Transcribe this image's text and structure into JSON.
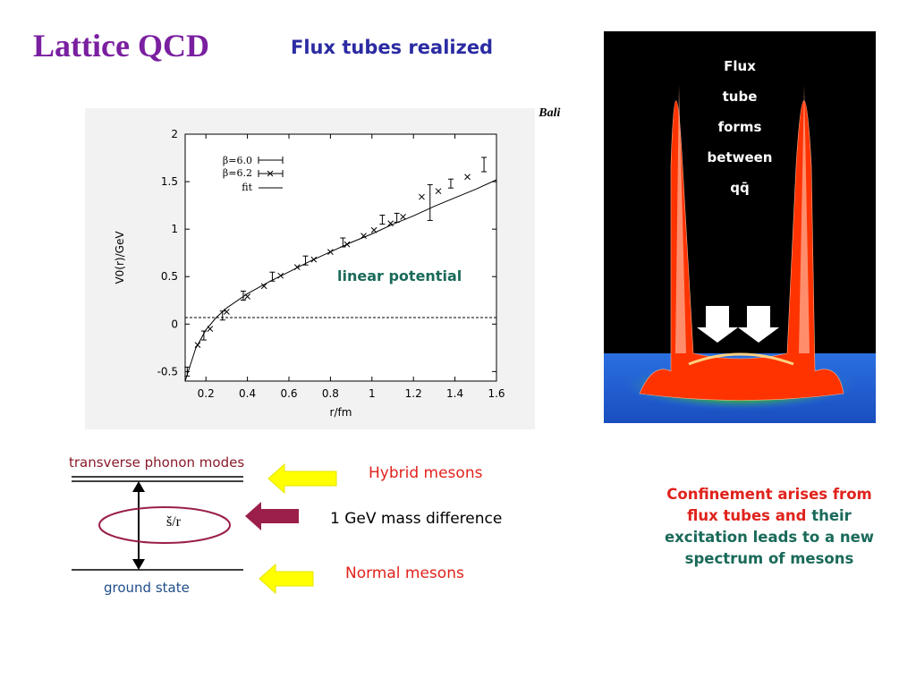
{
  "slide": {
    "title": "Lattice QCD",
    "subtitle": "Flux tubes realized",
    "credit": "From G. Bali"
  },
  "colors": {
    "title": "#7a1fa0",
    "subtitle": "#2b2ba3",
    "highlight_red": "#e0221c",
    "highlight_teal": "#1a6a5a",
    "arrow_yellow": "#ffff00",
    "arrow_maroon": "#9a1f4a"
  },
  "chart_data": {
    "type": "scatter",
    "xlabel": "r/fm",
    "ylabel": "V0(r)/GeV",
    "xlim": [
      0.1,
      1.6
    ],
    "ylim": [
      -0.6,
      2.0
    ],
    "x_ticks": [
      "0.2",
      "0.4",
      "0.6",
      "0.8",
      "1",
      "1.2",
      "1.4",
      "1.6"
    ],
    "y_ticks": [
      "-0.5",
      "0",
      "0.5",
      "1",
      "1.5",
      "2"
    ],
    "annotation": "linear potential",
    "legend_position": "top-left",
    "legend": [
      {
        "label": "β=6.0",
        "marker": "errorbar"
      },
      {
        "label": "β=6.2",
        "marker": "cross"
      },
      {
        "label": "fit",
        "marker": "line"
      }
    ],
    "series": [
      {
        "name": "β=6.0",
        "x": [
          0.11,
          0.19,
          0.28,
          0.38,
          0.52,
          0.68,
          0.86,
          1.05,
          1.12,
          1.28,
          1.38,
          1.54
        ],
        "y": [
          -0.5,
          -0.12,
          0.09,
          0.3,
          0.5,
          0.67,
          0.86,
          1.1,
          1.12,
          1.28,
          1.48,
          1.68
        ]
      },
      {
        "name": "β=6.2",
        "x": [
          0.16,
          0.22,
          0.3,
          0.4,
          0.48,
          0.56,
          0.64,
          0.72,
          0.8,
          0.88,
          0.96,
          1.01,
          1.09,
          1.15,
          1.24,
          1.32,
          1.46
        ],
        "y": [
          -0.22,
          -0.05,
          0.13,
          0.29,
          0.4,
          0.51,
          0.6,
          0.68,
          0.76,
          0.84,
          0.93,
          0.99,
          1.06,
          1.13,
          1.34,
          1.4,
          1.55
        ]
      },
      {
        "name": "fit",
        "x": [
          0.1,
          0.15,
          0.2,
          0.25,
          0.3,
          0.4,
          0.5,
          0.6,
          0.7,
          0.8,
          0.9,
          1.0,
          1.1,
          1.2,
          1.3,
          1.4,
          1.5,
          1.6
        ],
        "y": [
          -0.6,
          -0.26,
          -0.06,
          0.07,
          0.17,
          0.32,
          0.44,
          0.55,
          0.66,
          0.76,
          0.86,
          0.95,
          1.05,
          1.14,
          1.24,
          1.33,
          1.42,
          1.52
        ]
      }
    ]
  },
  "flux_tube_caption": [
    "Flux",
    "tube",
    "forms",
    "between",
    "qq̄"
  ],
  "level_diagram": {
    "top_label": "transverse phonon modes",
    "bottom_label": "ground state",
    "gap_label": "š/r"
  },
  "labels": {
    "hybrid": "Hybrid mesons",
    "gap": "1 GeV mass difference",
    "normal": "Normal mesons"
  },
  "conclusion": {
    "red": "Confinement arises from flux tubes and",
    "teal": "their excitation leads to a new spectrum of mesons"
  }
}
